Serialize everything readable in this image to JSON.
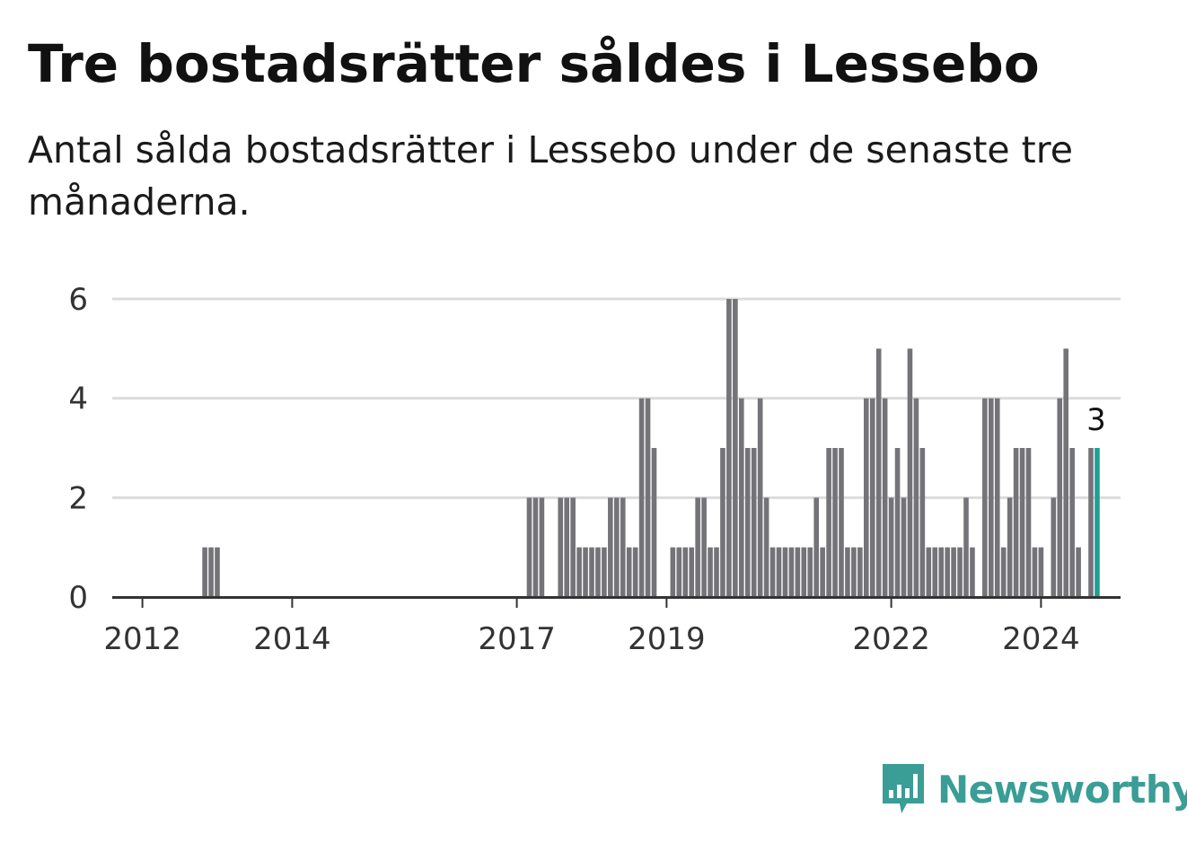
{
  "title": "Tre bostadsrätter såldes i Lessebo",
  "subtitle": "Antal sålda bostadsrätter i Lessebo under de senaste tre månaderna.",
  "brand": {
    "name": "Newsworthy",
    "color": "#3a9d96"
  },
  "colors": {
    "bar": "#747378",
    "highlight": "#1f9f94",
    "grid": "#dcdcdc",
    "axis": "#333333"
  },
  "chart_data": {
    "type": "bar",
    "x_ticks": [
      "2012",
      "2014",
      "2017",
      "2019",
      "2022",
      "2024"
    ],
    "y_ticks": [
      "0",
      "2",
      "4",
      "6"
    ],
    "ylim": [
      0,
      6
    ],
    "grid": true,
    "highlight_last": true,
    "last_value_label": "3",
    "series": [
      {
        "start_month": "2011-09",
        "values": [
          0,
          0,
          0,
          0,
          0,
          0,
          0,
          0,
          0,
          0,
          0,
          0,
          0,
          0,
          1,
          1,
          1,
          0,
          0,
          0,
          0,
          0,
          0,
          0,
          0,
          0,
          0,
          0,
          0,
          0,
          0,
          0,
          0,
          0,
          0,
          0,
          0,
          0,
          0,
          0,
          0,
          0,
          0,
          0,
          0,
          0,
          0,
          0,
          0,
          0,
          0,
          0,
          0,
          0,
          0,
          0,
          0,
          0,
          0,
          0,
          0,
          0,
          0,
          0,
          0,
          0,
          2,
          2,
          2,
          0,
          0,
          2,
          2,
          2,
          1,
          1,
          1,
          1,
          1,
          2,
          2,
          2,
          1,
          1,
          4,
          4,
          3,
          0,
          0,
          1,
          1,
          1,
          1,
          2,
          2,
          1,
          1,
          3,
          6,
          6,
          4,
          3,
          3,
          4,
          2,
          1,
          1,
          1,
          1,
          1,
          1,
          1,
          2,
          1,
          3,
          3,
          3,
          1,
          1,
          1,
          4,
          4,
          5,
          4,
          2,
          3,
          2,
          5,
          4,
          3,
          1,
          1,
          1,
          1,
          1,
          1,
          2,
          1,
          0,
          4,
          4,
          4,
          1,
          2,
          3,
          3,
          3,
          1,
          1,
          0,
          2,
          4,
          5,
          3,
          1,
          0,
          3,
          3
        ]
      }
    ]
  }
}
